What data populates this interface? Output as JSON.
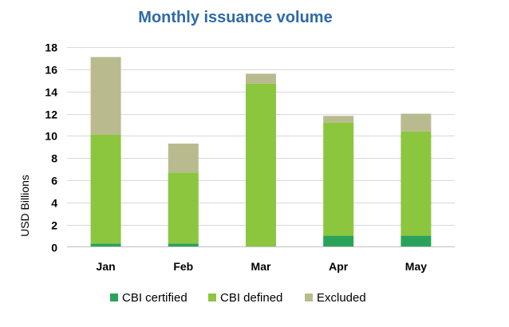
{
  "chart_data": {
    "type": "bar",
    "stacked": true,
    "title": "Monthly issuance volume",
    "xlabel": "",
    "ylabel": "USD Billions",
    "ylim": [
      0,
      18
    ],
    "yticks": [
      0,
      2,
      4,
      6,
      8,
      10,
      12,
      14,
      16,
      18
    ],
    "grid": true,
    "legend_position": "bottom",
    "categories": [
      "Jan",
      "Feb",
      "Mar",
      "Apr",
      "May"
    ],
    "series": [
      {
        "name": "CBI certified",
        "color": "#2aa35a",
        "values": [
          0.3,
          0.3,
          0.0,
          1.0,
          1.0
        ]
      },
      {
        "name": "CBI defined",
        "color": "#8cc63f",
        "values": [
          9.8,
          6.4,
          14.7,
          10.2,
          9.4
        ]
      },
      {
        "name": "Excluded",
        "color": "#b9bb8f",
        "values": [
          7.0,
          2.6,
          0.9,
          0.6,
          1.6
        ]
      }
    ]
  }
}
